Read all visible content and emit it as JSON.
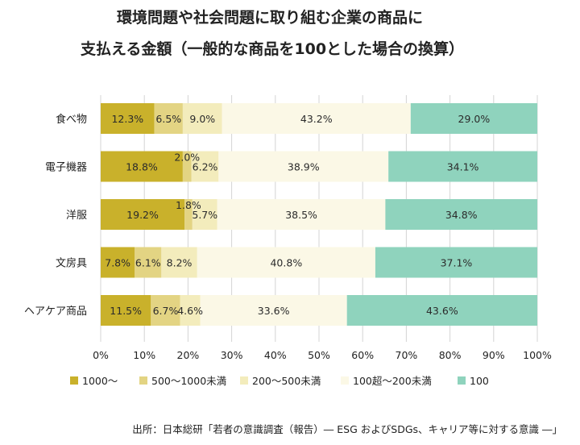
{
  "chart_data": {
    "type": "bar",
    "orientation": "horizontal",
    "stacked": true,
    "title_lines": [
      "環境問題や社会問題に取り組む企業の商品に",
      "支払える金額（一般的な商品を100とした場合の換算）"
    ],
    "categories": [
      "食べ物",
      "電子機器",
      "洋服",
      "文房具",
      "ヘアケア商品"
    ],
    "series": [
      {
        "name": "1000～",
        "color": "#c9b12b",
        "values": [
          12.3,
          18.8,
          19.2,
          7.8,
          11.5
        ],
        "labels": [
          "12.3%",
          "18.8%",
          "19.2%",
          "7.8%",
          "11.5%"
        ]
      },
      {
        "name": "500～1000未満",
        "color": "#e3d483",
        "values": [
          6.5,
          2.0,
          1.8,
          6.1,
          6.7
        ],
        "labels": [
          "6.5%",
          "2.0%",
          "1.8%",
          "6.1%",
          "6.7%"
        ]
      },
      {
        "name": "200～500未満",
        "color": "#f3ecbc",
        "values": [
          9.0,
          6.2,
          5.7,
          8.2,
          4.6
        ],
        "labels": [
          "9.0%",
          "6.2%",
          "5.7%",
          "8.2%",
          "4.6%"
        ]
      },
      {
        "name": "100超～200未満",
        "color": "#fbf8e6",
        "values": [
          43.2,
          38.9,
          38.5,
          40.8,
          33.6
        ],
        "labels": [
          "43.2%",
          "38.9%",
          "38.5%",
          "40.8%",
          "33.6%"
        ]
      },
      {
        "name": "100",
        "color": "#8fd3bd",
        "values": [
          29.0,
          34.1,
          34.8,
          37.1,
          43.6
        ],
        "labels": [
          "29.0%",
          "34.1%",
          "34.8%",
          "37.1%",
          "43.6%"
        ]
      }
    ],
    "xlim": [
      0,
      100
    ],
    "xticks": [
      "0%",
      "10%",
      "20%",
      "30%",
      "40%",
      "50%",
      "60%",
      "70%",
      "80%",
      "90%",
      "100%"
    ],
    "grid": true,
    "legend_position": "bottom"
  },
  "source_note": "出所：日本総研「若者の意識調査（報告）― ESG およびSDGs、キャリア等に対する意識 ―」"
}
